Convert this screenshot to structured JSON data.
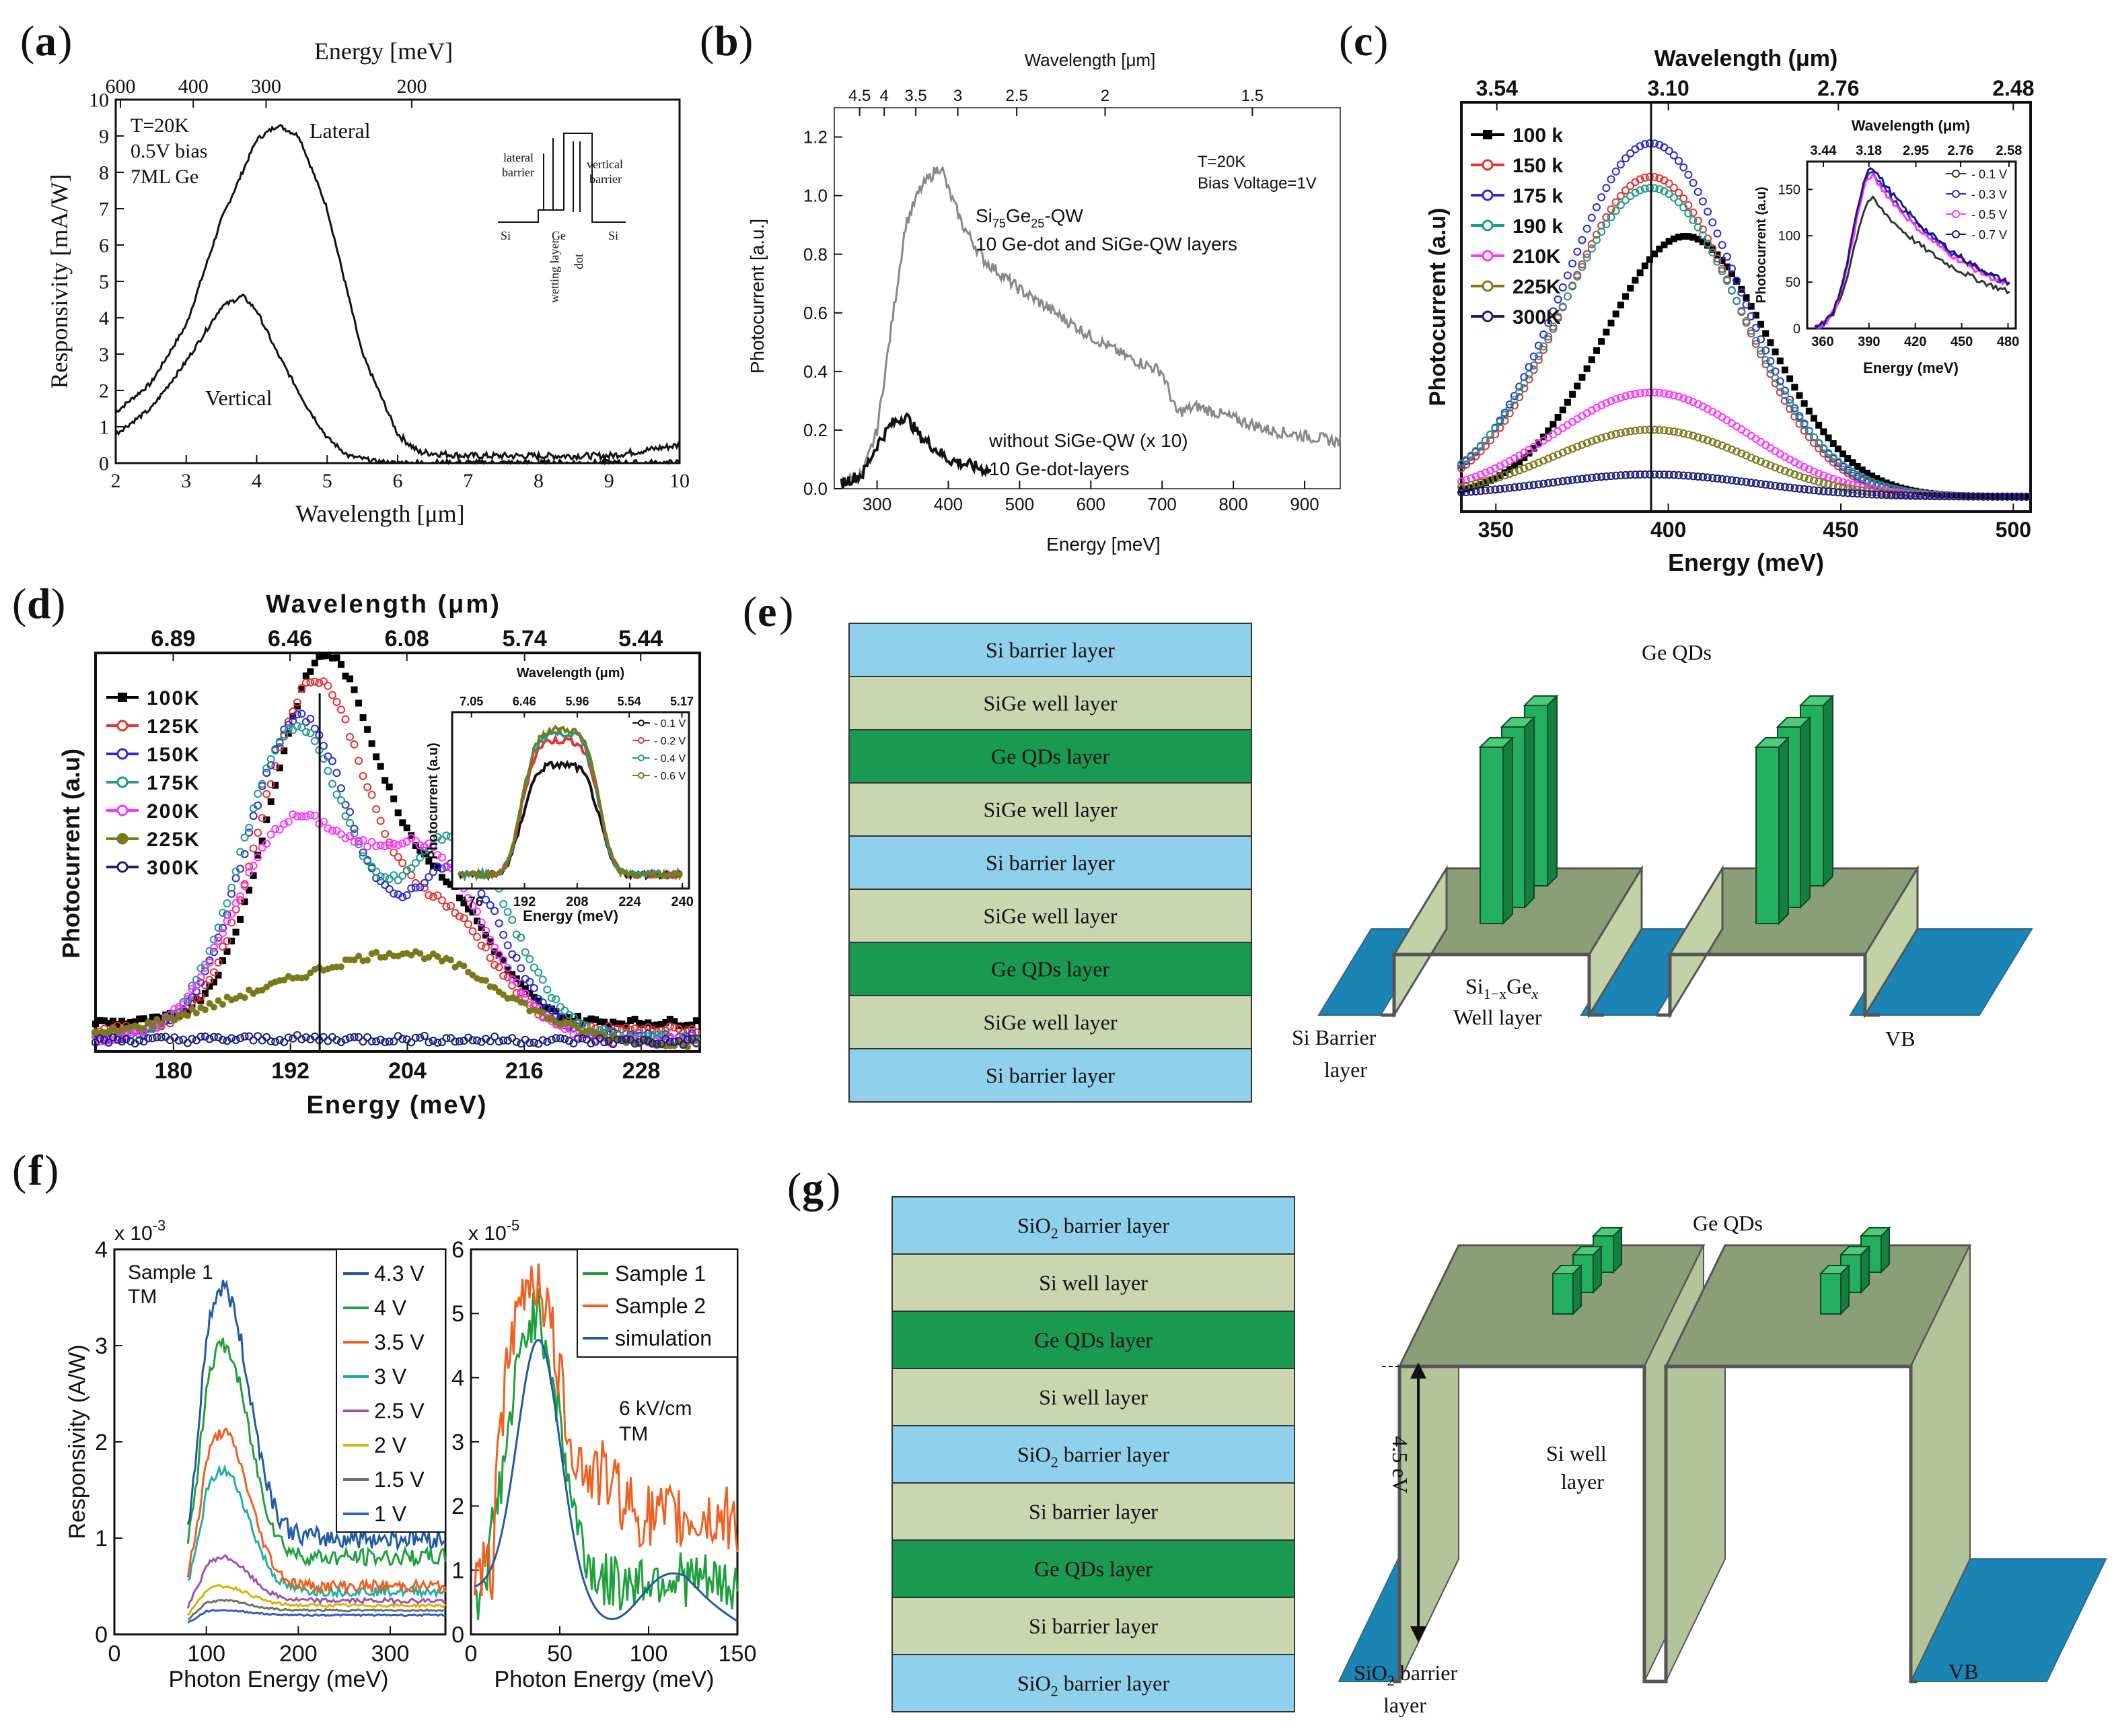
{
  "chart_data": [
    {
      "panel": "(a)",
      "type": "line",
      "top_axis_label": "Energy [meV]",
      "top_ticks": [
        "600",
        "400",
        "300",
        "200"
      ],
      "xlabel": "Wavelength [μm]",
      "ylabel": "Responsivity [mA/W]",
      "xlim": [
        2,
        10
      ],
      "ylim": [
        0,
        10
      ],
      "x_ticks": [
        "2",
        "3",
        "4",
        "5",
        "6",
        "7",
        "8",
        "9",
        "10"
      ],
      "y_ticks": [
        "0",
        "1",
        "2",
        "3",
        "4",
        "5",
        "6",
        "7",
        "8",
        "9",
        "10"
      ],
      "annotations": [
        "T=20K",
        "0.5V bias",
        "7ML Ge"
      ],
      "inset_labels": [
        "lateral",
        "barrier",
        "vertical",
        "barrier",
        "Si",
        "Ge",
        "Si",
        "wetting layer",
        "dot"
      ],
      "series": [
        {
          "name": "Lateral",
          "x": [
            2,
            2.5,
            3,
            3.5,
            4,
            4.3,
            4.6,
            5,
            5.5,
            6,
            6.3,
            7,
            8,
            9,
            10
          ],
          "y": [
            1.4,
            2.2,
            3.8,
            6.7,
            8.9,
            9.3,
            9.0,
            7.0,
            3.0,
            0.8,
            0.3,
            0.2,
            0.2,
            0.2,
            0.5
          ]
        },
        {
          "name": "Vertical",
          "x": [
            2,
            2.5,
            3,
            3.5,
            3.8,
            4,
            4.3,
            4.7,
            5,
            5.3,
            5.7,
            6,
            7
          ],
          "y": [
            0.8,
            1.5,
            2.8,
            4.3,
            4.6,
            4.2,
            3.0,
            1.6,
            0.7,
            0.2,
            0.05,
            0,
            0
          ]
        }
      ]
    },
    {
      "panel": "(b)",
      "type": "line",
      "top_axis_label": "Wavelength [μm]",
      "top_ticks": [
        "4.5",
        "4",
        "3.5",
        "3",
        "2.5",
        "2",
        "1.5"
      ],
      "xlabel": "Energy [meV]",
      "ylabel": "Photocurrent [a.u.]",
      "xlim": [
        240,
        950
      ],
      "ylim": [
        0,
        1.3
      ],
      "x_ticks": [
        "300",
        "400",
        "500",
        "600",
        "700",
        "800",
        "900"
      ],
      "y_ticks": [
        "0.0",
        "0.2",
        "0.4",
        "0.6",
        "0.8",
        "1.0",
        "1.2"
      ],
      "annotations": [
        "T=20K",
        "Bias Voltage=1V",
        "Si75Ge25-QW",
        "10 Ge-dot and SiGe-QW layers",
        "without SiGe-QW (x 10)",
        "10 Ge-dot-layers"
      ],
      "series": [
        {
          "name": "Si75Ge25-QW",
          "x": [
            250,
            280,
            300,
            320,
            340,
            360,
            380,
            390,
            400,
            420,
            450,
            480,
            500,
            550,
            600,
            650,
            700,
            720,
            750,
            800,
            850,
            900,
            950
          ],
          "y": [
            0.02,
            0.05,
            0.2,
            0.55,
            0.9,
            1.02,
            1.08,
            1.1,
            1.02,
            0.9,
            0.78,
            0.72,
            0.68,
            0.6,
            0.52,
            0.45,
            0.4,
            0.26,
            0.28,
            0.24,
            0.2,
            0.18,
            0.16
          ]
        },
        {
          "name": "without SiGe-QW (x 10)",
          "x": [
            250,
            280,
            300,
            320,
            340,
            360,
            380,
            400,
            430,
            460
          ],
          "y": [
            0.02,
            0.05,
            0.15,
            0.22,
            0.25,
            0.18,
            0.14,
            0.1,
            0.08,
            0.06
          ]
        }
      ]
    },
    {
      "panel": "(c)",
      "type": "scatter",
      "top_axis_label": "Wavelength (μm)",
      "top_ticks": [
        "3.54",
        "3.10",
        "2.76",
        "2.48"
      ],
      "xlabel": "Energy (meV)",
      "ylabel": "Photocurrent (a.u)",
      "xlim": [
        340,
        505
      ],
      "ylim": [
        0,
        1.1
      ],
      "x_ticks": [
        "350",
        "400",
        "450",
        "500"
      ],
      "vline_x": 395,
      "legend": [
        "100 k",
        "150 k",
        "175 k",
        "190 k",
        "210K",
        "225K",
        "300K"
      ],
      "colors": [
        "#000000",
        "#e83030",
        "#2a2ad8",
        "#1f9a8c",
        "#ff33ff",
        "#7a7a1a",
        "#1a1a7a"
      ],
      "peaks": [
        {
          "name": "100 k",
          "center": 405,
          "amp": 0.7,
          "sigma": 24
        },
        {
          "name": "150 k",
          "center": 395,
          "amp": 0.86,
          "sigma": 25
        },
        {
          "name": "175 k",
          "center": 395,
          "amp": 0.95,
          "sigma": 25
        },
        {
          "name": "190 k",
          "center": 395,
          "amp": 0.83,
          "sigma": 26
        },
        {
          "name": "210K",
          "center": 395,
          "amp": 0.28,
          "sigma": 28
        },
        {
          "name": "225K",
          "center": 395,
          "amp": 0.18,
          "sigma": 28
        },
        {
          "name": "300K",
          "center": 395,
          "amp": 0.06,
          "sigma": 30
        }
      ],
      "inset": {
        "top_axis_label": "Wavelength (μm)",
        "top_ticks": [
          "3.44",
          "3.18",
          "2.95",
          "2.76",
          "2.58"
        ],
        "xlabel": "Energy (meV)",
        "ylabel": "Photocurrent (a.u)",
        "x_ticks": [
          "360",
          "390",
          "420",
          "450",
          "480"
        ],
        "y_ticks": [
          "0",
          "50",
          "100",
          "150"
        ],
        "legend": [
          "0.1 V",
          "0.3 V",
          "0.5 V",
          "0.7 V"
        ]
      }
    },
    {
      "panel": "(d)",
      "type": "scatter",
      "top_axis_label": "Wavelength (μm)",
      "top_ticks": [
        "6.89",
        "6.46",
        "6.08",
        "5.74",
        "5.44"
      ],
      "xlabel": "Energy (meV)",
      "ylabel": "Photocurrent (a.u)",
      "xlim": [
        172,
        234
      ],
      "ylim": [
        0,
        1.1
      ],
      "x_ticks": [
        "180",
        "192",
        "204",
        "216",
        "228"
      ],
      "vline_x": 195,
      "legend": [
        "100K",
        "125K",
        "150K",
        "175K",
        "200K",
        "225K",
        "300K"
      ],
      "colors": [
        "#000000",
        "#e83030",
        "#2a2ad8",
        "#1f9a8c",
        "#ff33ff",
        "#7a7a1a",
        "#1a1a7a"
      ],
      "inset": {
        "top_axis_label": "Wavelength (μm)",
        "top_ticks": [
          "7.05",
          "6.46",
          "5.96",
          "5.54",
          "5.17"
        ],
        "xlabel": "Energy (meV)",
        "ylabel": "Photocurrent (a.u)",
        "x_ticks": [
          "176",
          "192",
          "208",
          "224",
          "240"
        ],
        "legend": [
          "0.1 V",
          "0.2 V",
          "0.4 V",
          "0.6 V"
        ]
      }
    },
    {
      "panel": "(f)",
      "type": "line",
      "left": {
        "xlabel": "Photon Energy (meV)",
        "ylabel": "Responsivity (A/W)",
        "multiplier": "x 10",
        "exponent": "-3",
        "xlim": [
          0,
          360
        ],
        "ylim": [
          0,
          4
        ],
        "x_ticks": [
          "0",
          "100",
          "200",
          "300"
        ],
        "y_ticks": [
          "0",
          "1",
          "2",
          "3",
          "4"
        ],
        "annotations": [
          "Sample 1",
          "TM"
        ],
        "legend": [
          "4.3 V",
          "4 V",
          "3.5 V",
          "3 V",
          "2.5 V",
          "2 V",
          "1.5 V",
          "1 V"
        ],
        "colors": [
          "#1f5aa6",
          "#1fa03c",
          "#f06020",
          "#20b0a0",
          "#a050b0",
          "#d8b400",
          "#707070",
          "#3060c0"
        ],
        "peaks": [
          3.6,
          3.0,
          2.1,
          1.7,
          0.8,
          0.5,
          0.35,
          0.25
        ],
        "tails": [
          1.0,
          0.8,
          0.5,
          0.45,
          0.35,
          0.3,
          0.25,
          0.2
        ]
      },
      "right": {
        "xlabel": "Photon Energy (meV)",
        "multiplier": "x 10",
        "exponent": "-5",
        "xlim": [
          0,
          150
        ],
        "ylim": [
          0,
          6
        ],
        "x_ticks": [
          "0",
          "50",
          "100",
          "150"
        ],
        "y_ticks": [
          "0",
          "1",
          "2",
          "3",
          "4",
          "5",
          "6"
        ],
        "annotations": [
          "6 kV/cm",
          "TM"
        ],
        "legend": [
          "Sample 1",
          "Sample 2",
          "simulation"
        ],
        "colors": [
          "#1fa03c",
          "#f06020",
          "#1f5aa6"
        ]
      }
    }
  ],
  "diagrams": [
    {
      "panel": "(e)",
      "layers": [
        "Si barrier layer",
        "SiGe well layer",
        "Ge QDs layer",
        "SiGe well layer",
        "Si barrier layer",
        "SiGe well layer",
        "Ge QDs layer",
        "SiGe well layer",
        "Si barrier layer"
      ],
      "layer_kinds": [
        "barrier",
        "well",
        "qd",
        "well",
        "barrier",
        "well",
        "qd",
        "well",
        "barrier"
      ],
      "labels": {
        "qds": "Ge QDs",
        "well_a": "Si",
        "well_sub": "1−x",
        "well_b": "Ge",
        "well_subx": "x",
        "well_line2": "Well layer",
        "barrier_line1": "Si Barrier",
        "barrier_line2": "layer",
        "vb": "VB"
      }
    },
    {
      "panel": "(g)",
      "layers": [
        "SiO2 barrier layer",
        "Si well layer",
        "Ge QDs layer",
        "Si well layer",
        "SiO2 barrier layer",
        "Si barrier layer",
        "Ge QDs layer",
        "Si barrier layer",
        "SiO2 barrier layer"
      ],
      "layer_kinds": [
        "barrier",
        "well",
        "qd",
        "well",
        "barrier",
        "well",
        "qd",
        "well",
        "barrier"
      ],
      "labels": {
        "qds": "Ge QDs",
        "gap": "4.5 eV",
        "well_line1": "Si well",
        "well_line2": "layer",
        "barrier_line1": "SiO",
        "barrier_sub": "2",
        "barrier_line1b": " barrier",
        "barrier_line2": "layer",
        "vb": "VB"
      }
    }
  ],
  "colors": {
    "barrier": "#8fd0ec",
    "well": "#c9d6b0",
    "qd": "#1a9a50",
    "plate": "#1a85b5",
    "bar3d": "#9aab86",
    "qd3d": "#22b060"
  }
}
